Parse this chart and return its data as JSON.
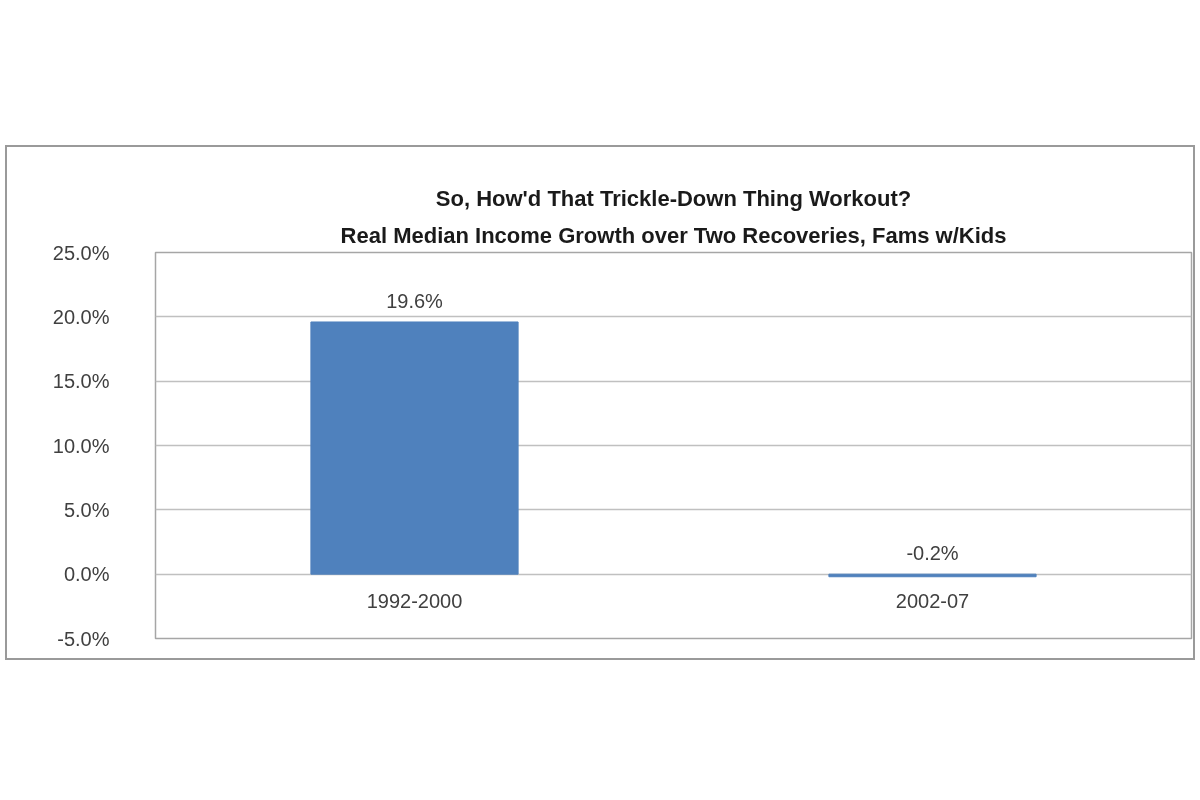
{
  "chart_data": {
    "type": "bar",
    "title": "So, How'd That Trickle-Down Thing Workout?",
    "subtitle": "Real Median Income Growth over Two Recoveries, Fams w/Kids",
    "categories": [
      "1992-2000",
      "2002-07"
    ],
    "values": [
      19.6,
      -0.2
    ],
    "value_labels": [
      "19.6%",
      "-0.2%"
    ],
    "color": "#4f81bd",
    "ylim": [
      -5,
      25
    ],
    "yticks": [
      {
        "value": -5,
        "label": "-5.0%"
      },
      {
        "value": 0,
        "label": "0.0%"
      },
      {
        "value": 5,
        "label": "5.0%"
      },
      {
        "value": 10,
        "label": "10.0%"
      },
      {
        "value": 15,
        "label": "15.0%"
      },
      {
        "value": 20,
        "label": "20.0%"
      },
      {
        "value": 25,
        "label": "25.0%"
      }
    ],
    "grid": "y"
  }
}
